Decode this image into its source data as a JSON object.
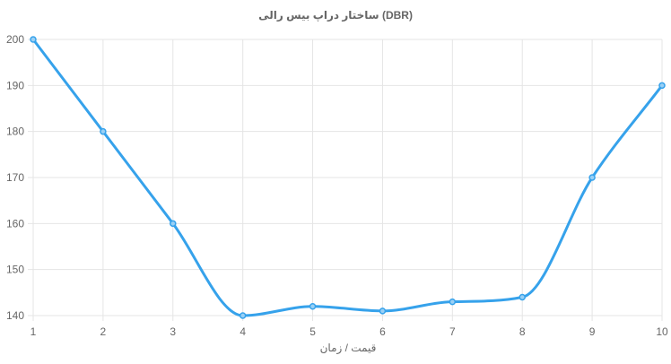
{
  "chart_data": {
    "type": "line",
    "title": "ساختار دراپ بیس رالی (DBR)",
    "xlabel": "قیمت / زمان",
    "ylabel": "",
    "x": [
      1,
      2,
      3,
      4,
      5,
      6,
      7,
      8,
      9,
      10
    ],
    "series": [
      {
        "values": [
          200,
          180,
          160,
          140,
          142,
          141,
          143,
          144,
          170,
          190
        ]
      }
    ],
    "xlim": [
      1,
      10
    ],
    "ylim": [
      140,
      200
    ],
    "yticks": [
      140,
      150,
      160,
      170,
      180,
      190,
      200
    ],
    "grid": true,
    "legend": "none",
    "colors": {
      "line": "#36a2eb",
      "point": "#36a2eb",
      "point_fill": "#9ad0f5",
      "grid": "#e5e5e5",
      "text": "#666666"
    }
  }
}
